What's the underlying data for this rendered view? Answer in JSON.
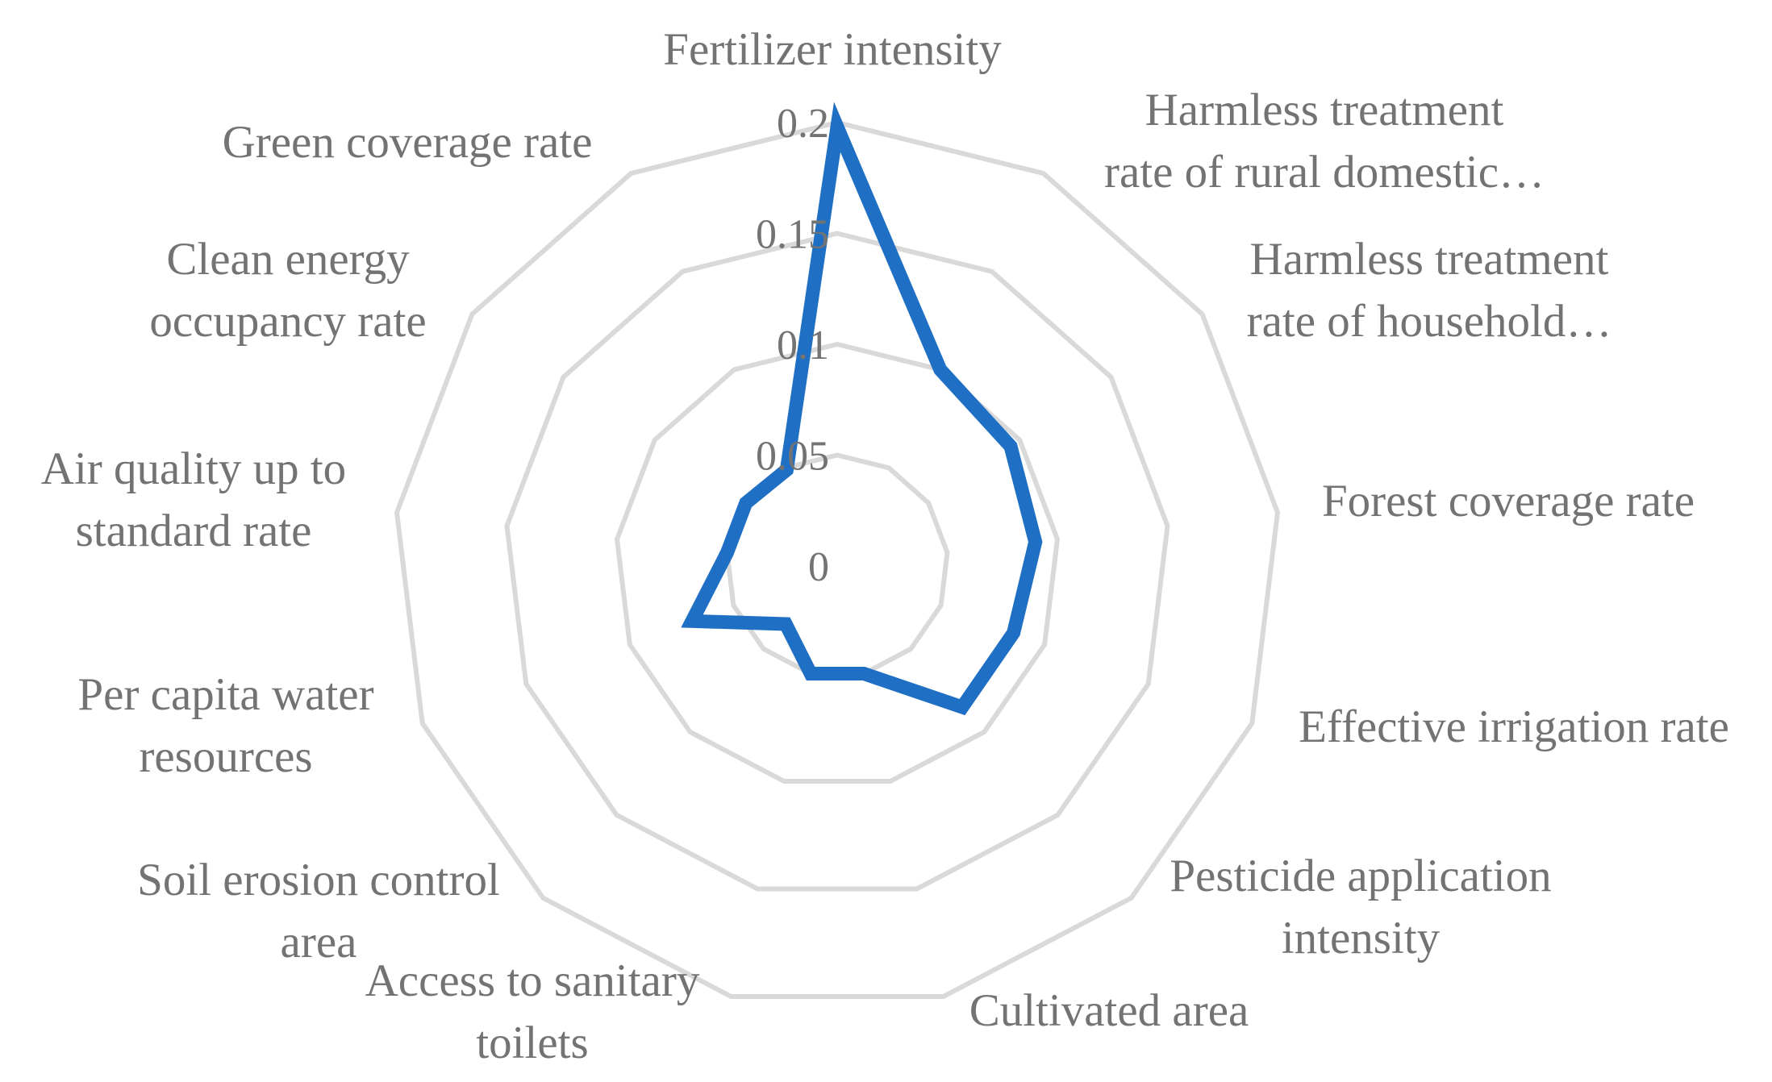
{
  "chart_data": {
    "type": "radar",
    "title": "",
    "rmin": 0,
    "rmax": 0.2,
    "ticks": [
      "0",
      "0.05",
      "0.1",
      "0.15",
      "0.2"
    ],
    "tick_values": [
      0,
      0.05,
      0.1,
      0.15,
      0.2
    ],
    "grid": true,
    "legend": "none",
    "categories": [
      [
        "Fertilizer intensity"
      ],
      [
        "Harmless treatment",
        "rate of rural domestic…"
      ],
      [
        "Harmless treatment",
        "rate of household…"
      ],
      [
        "Forest coverage rate"
      ],
      [
        "Effective irrigation rate"
      ],
      [
        "Pesticide application",
        "intensity"
      ],
      [
        "Cultivated area"
      ],
      [
        "Access to sanitary",
        "toilets"
      ],
      [
        "Soil erosion control",
        "area"
      ],
      [
        "Per capita water",
        "resources"
      ],
      [
        "Air quality up to",
        "standard rate"
      ],
      [
        "Clean energy",
        "occupancy rate"
      ],
      [
        "Green coverage rate"
      ]
    ],
    "series": [
      {
        "color": "#1f6fc5",
        "values": [
          0.198,
          0.1,
          0.095,
          0.09,
          0.085,
          0.085,
          0.05,
          0.05,
          0.035,
          0.07,
          0.05,
          0.05,
          0.049
        ]
      }
    ]
  }
}
